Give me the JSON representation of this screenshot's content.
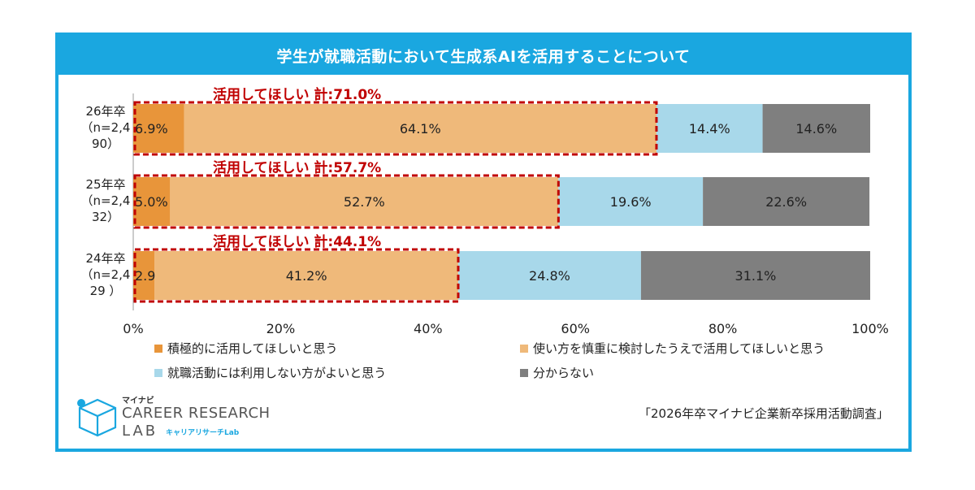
{
  "title": "学生が就職活動において生成系AIを活用することについて",
  "colors": {
    "accent": "#1aa7e0",
    "active": "#e8953a",
    "careful": "#efb97a",
    "no_use": "#a8d8ea",
    "unknown": "#7f7f7f",
    "highlight": "#c00000"
  },
  "chart_data": {
    "type": "bar",
    "orientation": "horizontal",
    "stacked": true,
    "categories": [
      [
        "26年卒",
        "（n=2,4",
        "90）"
      ],
      [
        "25年卒",
        "（n=2,4",
        "32）"
      ],
      [
        "24年卒",
        "（n=2,4",
        "29 ）"
      ]
    ],
    "series": [
      {
        "name": "積極的に活用してほしいと思う",
        "values": [
          6.9,
          5.0,
          2.9
        ],
        "labels": [
          "6.9%",
          "5.0%",
          "2.9%"
        ]
      },
      {
        "name": "使い方を慎重に検討したうえで活用してほしいと思う",
        "values": [
          64.1,
          52.7,
          41.2
        ],
        "labels": [
          "64.1%",
          "52.7%",
          "41.2%"
        ]
      },
      {
        "name": "就職活動には利用しない方がよいと思う",
        "values": [
          14.4,
          19.6,
          24.8
        ],
        "labels": [
          "14.4%",
          "19.6%",
          "24.8%"
        ]
      },
      {
        "name": "分からない",
        "values": [
          14.6,
          22.6,
          31.1
        ],
        "labels": [
          "14.6%",
          "22.6%",
          "31.1%"
        ]
      }
    ],
    "annotations": [
      "活用してほしい 計:71.0%",
      "活用してほしい 計:57.7%",
      "活用してほしい 計:44.1%"
    ],
    "annotation_values": [
      71.0,
      57.7,
      44.1
    ],
    "xlim": [
      0,
      100
    ],
    "xticks": [
      0,
      20,
      40,
      60,
      80,
      100
    ],
    "xtick_labels": [
      "0%",
      "20%",
      "40%",
      "60%",
      "80%",
      "100%"
    ],
    "grid": false,
    "legend_position": "bottom"
  },
  "logo": {
    "small": "マイナビ",
    "main": "CAREER RESEARCH",
    "lab": "LAB",
    "kana": "キャリアリサーチLab"
  },
  "source": "「2026年卒マイナビ企業新卒採用活動調査」"
}
